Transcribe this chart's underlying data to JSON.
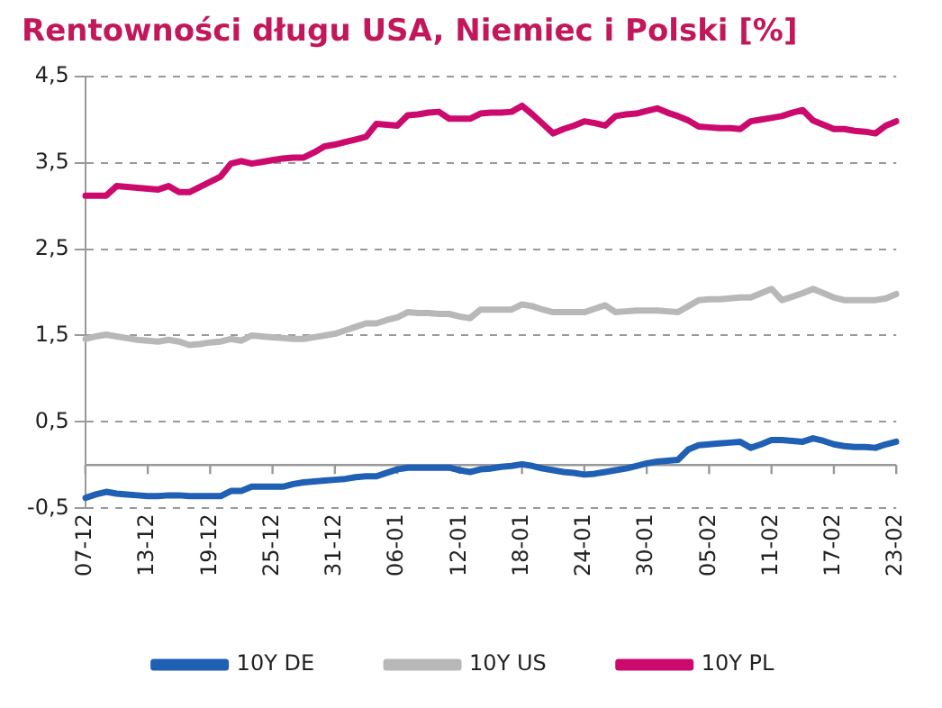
{
  "chart_data": {
    "type": "line",
    "title": "Rentowności długu USA, Niemiec i Polski [%]",
    "categories": [
      "07-12",
      null,
      null,
      null,
      null,
      null,
      "13-12",
      null,
      null,
      null,
      null,
      null,
      "19-12",
      null,
      null,
      null,
      null,
      null,
      "25-12",
      null,
      null,
      null,
      null,
      null,
      "31-12",
      null,
      null,
      null,
      null,
      null,
      "06-01",
      null,
      null,
      null,
      null,
      null,
      "12-01",
      null,
      null,
      null,
      null,
      null,
      "18-01",
      null,
      null,
      null,
      null,
      null,
      "24-01",
      null,
      null,
      null,
      null,
      null,
      "30-01",
      null,
      null,
      null,
      null,
      null,
      "05-02",
      null,
      null,
      null,
      null,
      null,
      "11-02",
      null,
      null,
      null,
      null,
      null,
      "17-02",
      null,
      null,
      null,
      null,
      null,
      "23-02"
    ],
    "series": [
      {
        "name": "10Y DE",
        "color": "#1f5fb4",
        "values": [
          -0.38,
          -0.34,
          -0.31,
          -0.33,
          -0.34,
          -0.35,
          -0.36,
          -0.36,
          -0.35,
          -0.35,
          -0.36,
          -0.36,
          -0.36,
          -0.36,
          -0.3,
          -0.3,
          -0.25,
          -0.25,
          -0.25,
          -0.25,
          -0.22,
          -0.2,
          -0.19,
          -0.18,
          -0.17,
          -0.16,
          -0.14,
          -0.13,
          -0.13,
          -0.09,
          -0.05,
          -0.03,
          -0.03,
          -0.03,
          -0.03,
          -0.03,
          -0.06,
          -0.08,
          -0.05,
          -0.04,
          -0.02,
          -0.01,
          0.01,
          -0.01,
          -0.04,
          -0.06,
          -0.08,
          -0.09,
          -0.11,
          -0.1,
          -0.08,
          -0.06,
          -0.04,
          -0.01,
          0.02,
          0.04,
          0.05,
          0.06,
          0.18,
          0.23,
          0.24,
          0.25,
          0.26,
          0.27,
          0.2,
          0.24,
          0.29,
          0.29,
          0.28,
          0.27,
          0.31,
          0.28,
          0.24,
          0.22,
          0.21,
          0.21,
          0.2,
          0.24,
          0.27
        ]
      },
      {
        "name": "10Y US",
        "color": "#b8b8b8",
        "values": [
          1.46,
          1.49,
          1.51,
          1.49,
          1.47,
          1.45,
          1.44,
          1.43,
          1.45,
          1.43,
          1.39,
          1.4,
          1.42,
          1.43,
          1.46,
          1.44,
          1.5,
          1.49,
          1.48,
          1.47,
          1.46,
          1.46,
          1.48,
          1.5,
          1.52,
          1.56,
          1.6,
          1.64,
          1.64,
          1.68,
          1.71,
          1.77,
          1.76,
          1.76,
          1.75,
          1.75,
          1.72,
          1.7,
          1.8,
          1.8,
          1.8,
          1.8,
          1.86,
          1.84,
          1.8,
          1.77,
          1.77,
          1.77,
          1.77,
          1.81,
          1.85,
          1.77,
          1.78,
          1.79,
          1.79,
          1.79,
          1.78,
          1.77,
          1.84,
          1.91,
          1.92,
          1.92,
          1.93,
          1.94,
          1.94,
          1.99,
          2.04,
          1.91,
          1.95,
          1.99,
          2.04,
          1.99,
          1.94,
          1.91,
          1.91,
          1.91,
          1.91,
          1.93,
          1.98
        ]
      },
      {
        "name": "10Y PL",
        "color": "#cc0a6e",
        "values": [
          3.12,
          3.12,
          3.12,
          3.23,
          3.22,
          3.21,
          3.2,
          3.19,
          3.23,
          3.16,
          3.16,
          3.22,
          3.28,
          3.34,
          3.49,
          3.52,
          3.49,
          3.51,
          3.53,
          3.55,
          3.56,
          3.56,
          3.62,
          3.69,
          3.71,
          3.74,
          3.77,
          3.8,
          3.95,
          3.94,
          3.93,
          4.05,
          4.06,
          4.08,
          4.09,
          4.01,
          4.01,
          4.01,
          4.07,
          4.08,
          4.08,
          4.09,
          4.16,
          4.06,
          3.95,
          3.84,
          3.89,
          3.93,
          3.98,
          3.96,
          3.93,
          4.04,
          4.06,
          4.07,
          4.1,
          4.13,
          4.08,
          4.04,
          3.99,
          3.92,
          3.91,
          3.9,
          3.9,
          3.89,
          3.98,
          4.0,
          4.02,
          4.04,
          4.08,
          4.11,
          3.99,
          3.94,
          3.89,
          3.89,
          3.87,
          3.86,
          3.84,
          3.93,
          3.98
        ]
      }
    ],
    "ylim": [
      -0.5,
      4.5
    ],
    "yticks": [
      {
        "value": -0.5,
        "label": "-0,5"
      },
      {
        "value": 0.5,
        "label": "0,5"
      },
      {
        "value": 1.5,
        "label": "1,5"
      },
      {
        "value": 2.5,
        "label": "2,5"
      },
      {
        "value": 3.5,
        "label": "3,5"
      },
      {
        "value": 4.5,
        "label": "4,5"
      }
    ],
    "ref_lines": [
      {
        "axis": "y",
        "value": 0,
        "color": "#999999",
        "line_style": "solid"
      }
    ],
    "grid": "y",
    "legend": "bottom",
    "marker": "none",
    "line_style": "solid"
  }
}
